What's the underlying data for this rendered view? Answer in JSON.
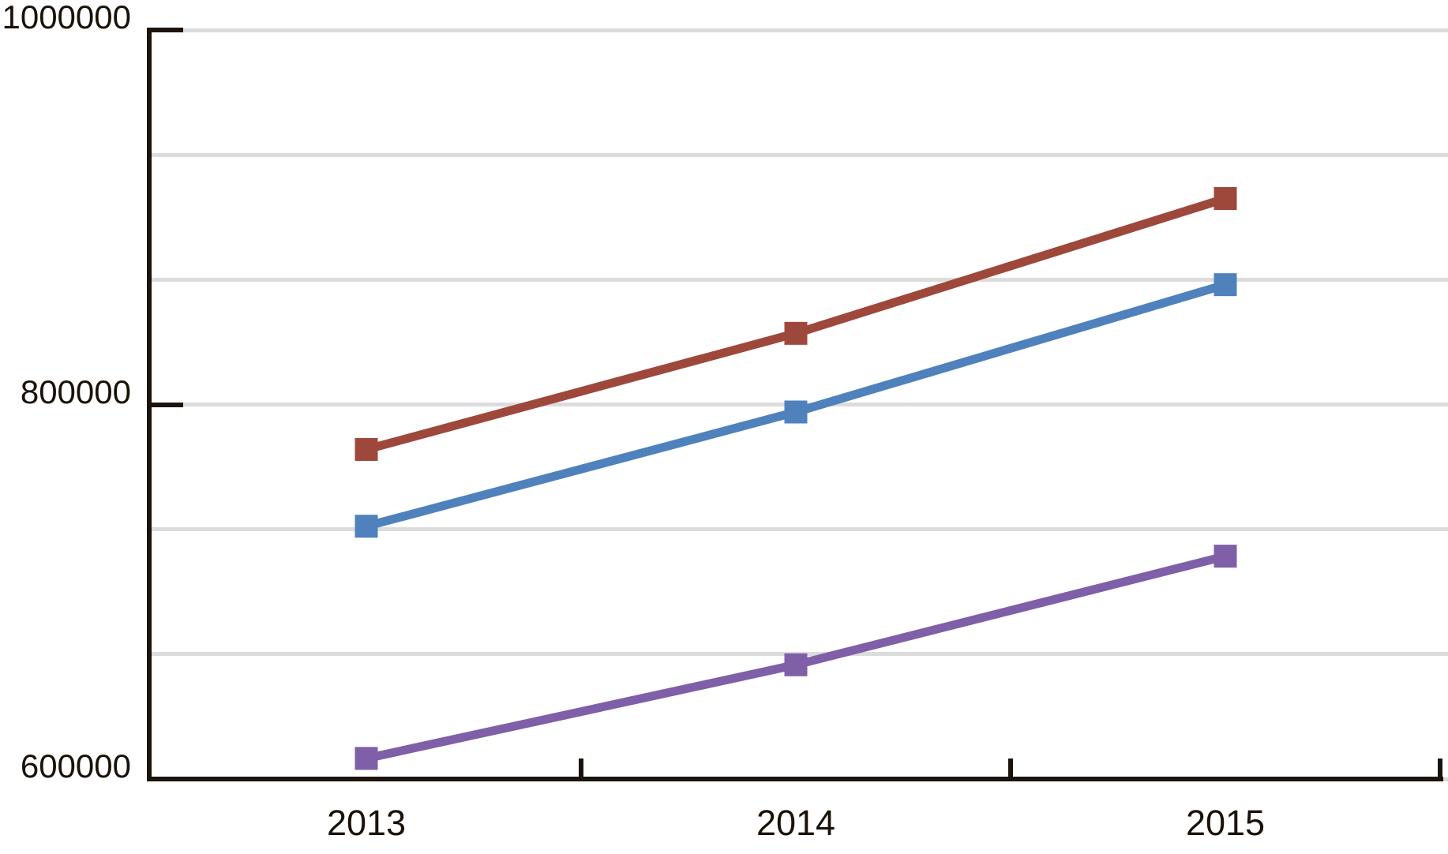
{
  "chart_data": {
    "type": "line",
    "title": "",
    "xlabel": "",
    "ylabel": "",
    "categories": [
      "2013",
      "2014",
      "2015"
    ],
    "series": [
      {
        "name": "brown-series",
        "color": "#9E483C",
        "values": [
          776000,
          838000,
          910000
        ]
      },
      {
        "name": "blue-series",
        "color": "#4F81BD",
        "values": [
          735000,
          796000,
          864000
        ]
      },
      {
        "name": "purple-series",
        "color": "#7E5FA8",
        "values": [
          611000,
          661000,
          719000
        ]
      }
    ],
    "marker": "square",
    "line_width": 11,
    "marker_size": 29,
    "ylim": [
      600000,
      1000000
    ],
    "y_tick_labels": [
      "600000",
      "800000",
      "1000000"
    ],
    "y_labeled_ticks": [
      600000,
      800000,
      1000000
    ],
    "y_gridlines": [
      600000,
      666667,
      733333,
      800000,
      866667,
      933333,
      1000000
    ],
    "grid": "horizontal",
    "legend_position": "none"
  },
  "colors": {
    "background": "#FFFFFF",
    "axis": "#1C130C",
    "gridline": "#DCDCDC",
    "tick_text": "#1A1208"
  }
}
